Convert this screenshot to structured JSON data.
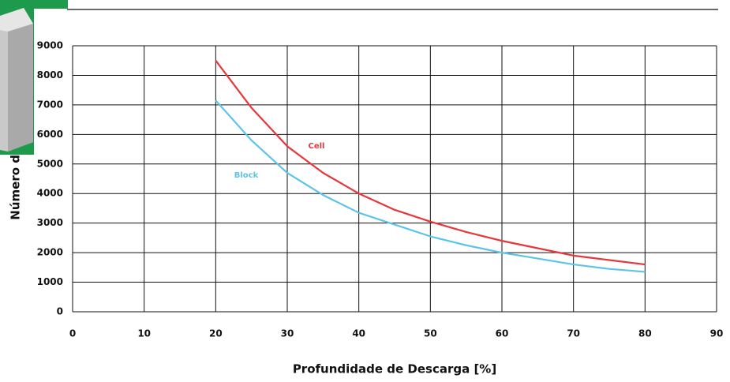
{
  "chart_data": {
    "type": "line",
    "x": [
      20,
      25,
      30,
      35,
      40,
      45,
      50,
      55,
      60,
      65,
      70,
      75,
      80
    ],
    "series": [
      {
        "name": "Cell",
        "color": "#e8363b",
        "values": [
          8500,
          6900,
          5600,
          4700,
          4000,
          3450,
          3050,
          2700,
          2400,
          2150,
          1900,
          1750,
          1600
        ]
      },
      {
        "name": "Block",
        "color": "#5cc4ea",
        "values": [
          7150,
          5800,
          4700,
          3950,
          3350,
          2950,
          2550,
          2250,
          2000,
          1800,
          1600,
          1450,
          1350
        ]
      }
    ],
    "xlabel": "Profundidade de Descarga [%]",
    "ylabel": "Número de ciclos",
    "xlim": [
      0,
      90
    ],
    "xticks": [
      0,
      10,
      20,
      30,
      40,
      50,
      60,
      70,
      80,
      90
    ],
    "ylim": [
      0,
      9000
    ],
    "yticks": [
      0,
      1000,
      2000,
      3000,
      4000,
      5000,
      6000,
      7000,
      8000,
      9000
    ],
    "grid": true
  }
}
